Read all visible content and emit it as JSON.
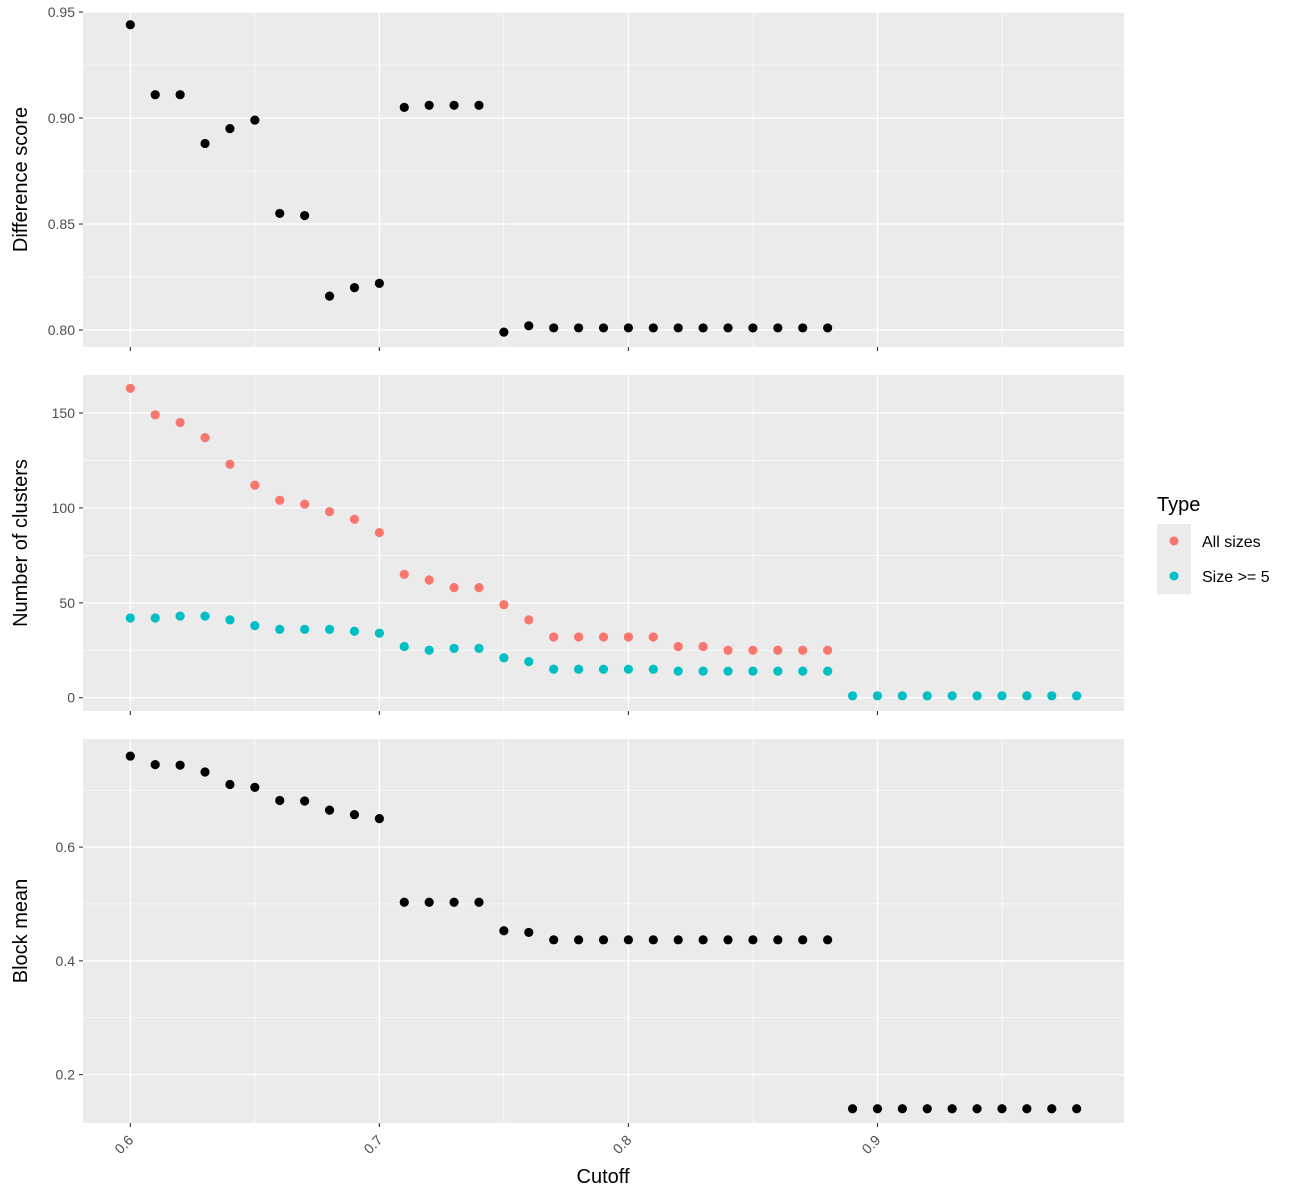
{
  "chart_data": {
    "type": "scatter",
    "xlabel": "Cutoff",
    "xticks": [
      "0.6",
      "0.7",
      "0.8",
      "0.9"
    ],
    "xlim": [
      0.581,
      0.999
    ],
    "grid": true,
    "legend": {
      "title": "Type",
      "position": "right",
      "entries": [
        {
          "label": "All sizes",
          "color": "#F8766D"
        },
        {
          "label": "Size >= 5",
          "color": "#00BFC4"
        }
      ]
    },
    "panels": [
      {
        "ylabel": "Difference score",
        "yticks": [
          "0.80",
          "0.85",
          "0.90",
          "0.95"
        ],
        "ylim": [
          0.792,
          0.95
        ],
        "series": [
          {
            "color": "#000000",
            "x": [
              0.6,
              0.61,
              0.62,
              0.63,
              0.64,
              0.65,
              0.66,
              0.67,
              0.68,
              0.69,
              0.7,
              0.71,
              0.72,
              0.73,
              0.74,
              0.75,
              0.76,
              0.77,
              0.78,
              0.79,
              0.8,
              0.81,
              0.82,
              0.83,
              0.84,
              0.85,
              0.86,
              0.87,
              0.88
            ],
            "y": [
              0.944,
              0.911,
              0.911,
              0.888,
              0.895,
              0.899,
              0.855,
              0.854,
              0.816,
              0.82,
              0.822,
              0.905,
              0.906,
              0.906,
              0.906,
              0.799,
              0.802,
              0.801,
              0.801,
              0.801,
              0.801,
              0.801,
              0.801,
              0.801,
              0.801,
              0.801,
              0.801,
              0.801,
              0.801
            ]
          }
        ]
      },
      {
        "ylabel": "Number of clusters",
        "yticks": [
          "0",
          "50",
          "100",
          "150"
        ],
        "ylim": [
          -7,
          170
        ],
        "series": [
          {
            "name": "All sizes",
            "color": "#F8766D",
            "x": [
              0.6,
              0.61,
              0.62,
              0.63,
              0.64,
              0.65,
              0.66,
              0.67,
              0.68,
              0.69,
              0.7,
              0.71,
              0.72,
              0.73,
              0.74,
              0.75,
              0.76,
              0.77,
              0.78,
              0.79,
              0.8,
              0.81,
              0.82,
              0.83,
              0.84,
              0.85,
              0.86,
              0.87,
              0.88
            ],
            "y": [
              163,
              149,
              145,
              137,
              123,
              112,
              104,
              102,
              98,
              94,
              87,
              65,
              62,
              58,
              58,
              49,
              41,
              32,
              32,
              32,
              32,
              32,
              27,
              27,
              25,
              25,
              25,
              25,
              25
            ]
          },
          {
            "name": "Size >= 5",
            "color": "#00BFC4",
            "x": [
              0.6,
              0.61,
              0.62,
              0.63,
              0.64,
              0.65,
              0.66,
              0.67,
              0.68,
              0.69,
              0.7,
              0.71,
              0.72,
              0.73,
              0.74,
              0.75,
              0.76,
              0.77,
              0.78,
              0.79,
              0.8,
              0.81,
              0.82,
              0.83,
              0.84,
              0.85,
              0.86,
              0.87,
              0.88,
              0.89,
              0.9,
              0.91,
              0.92,
              0.93,
              0.94,
              0.95,
              0.96,
              0.97,
              0.98
            ],
            "y": [
              42,
              42,
              43,
              43,
              41,
              38,
              36,
              36,
              36,
              35,
              34,
              27,
              25,
              26,
              26,
              21,
              19,
              15,
              15,
              15,
              15,
              15,
              14,
              14,
              14,
              14,
              14,
              14,
              14,
              1,
              1,
              1,
              1,
              1,
              1,
              1,
              1,
              1,
              1
            ]
          }
        ]
      },
      {
        "ylabel": "Block mean",
        "yticks": [
          "0.2",
          "0.4",
          "0.6"
        ],
        "ylim": [
          0.115,
          0.79
        ],
        "series": [
          {
            "color": "#000000",
            "x": [
              0.6,
              0.61,
              0.62,
              0.63,
              0.64,
              0.65,
              0.66,
              0.67,
              0.68,
              0.69,
              0.7,
              0.71,
              0.72,
              0.73,
              0.74,
              0.75,
              0.76,
              0.77,
              0.78,
              0.79,
              0.8,
              0.81,
              0.82,
              0.83,
              0.84,
              0.85,
              0.86,
              0.87,
              0.88,
              0.89,
              0.9,
              0.91,
              0.92,
              0.93,
              0.94,
              0.95,
              0.96,
              0.97,
              0.98
            ],
            "y": [
              0.76,
              0.745,
              0.744,
              0.732,
              0.71,
              0.705,
              0.682,
              0.681,
              0.665,
              0.657,
              0.65,
              0.503,
              0.503,
              0.503,
              0.503,
              0.453,
              0.45,
              0.437,
              0.437,
              0.437,
              0.437,
              0.437,
              0.437,
              0.437,
              0.437,
              0.437,
              0.437,
              0.437,
              0.437,
              0.14,
              0.14,
              0.14,
              0.14,
              0.14,
              0.14,
              0.14,
              0.14,
              0.14,
              0.14
            ]
          }
        ]
      }
    ]
  }
}
